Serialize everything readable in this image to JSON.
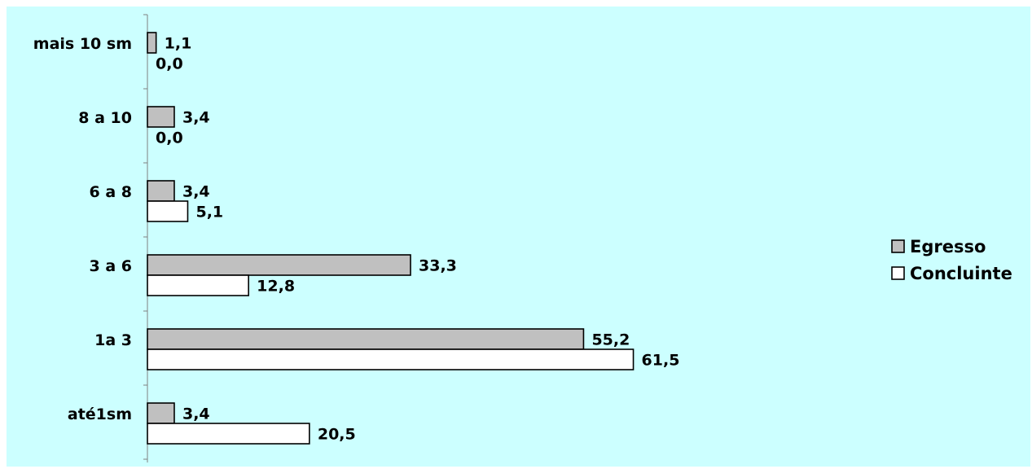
{
  "colors": {
    "background": "#ccffff",
    "egresso": "#c0c0c0",
    "concluinte": "#ffffff",
    "stroke": "#000000",
    "axis": "#808080"
  },
  "chart_data": {
    "type": "bar",
    "orientation": "horizontal",
    "categories": [
      "mais 10 sm",
      "8 a 10",
      "6 a 8",
      "3 a 6",
      "1a 3",
      "até1sm"
    ],
    "series": [
      {
        "name": "Egresso",
        "values": [
          1.1,
          3.4,
          3.4,
          33.3,
          55.2,
          3.4
        ],
        "labels": [
          "1,1",
          "3,4",
          "3,4",
          "33,3",
          "55,2",
          "3,4"
        ]
      },
      {
        "name": "Concluinte",
        "values": [
          0.0,
          0.0,
          5.1,
          12.8,
          61.5,
          20.5
        ],
        "labels": [
          "0,0",
          "0,0",
          "5,1",
          "12,8",
          "61,5",
          "20,5"
        ]
      }
    ],
    "title": "",
    "xlabel": "",
    "ylabel": "",
    "xlim": [
      0,
      70
    ],
    "grid": false,
    "legend": "right"
  }
}
